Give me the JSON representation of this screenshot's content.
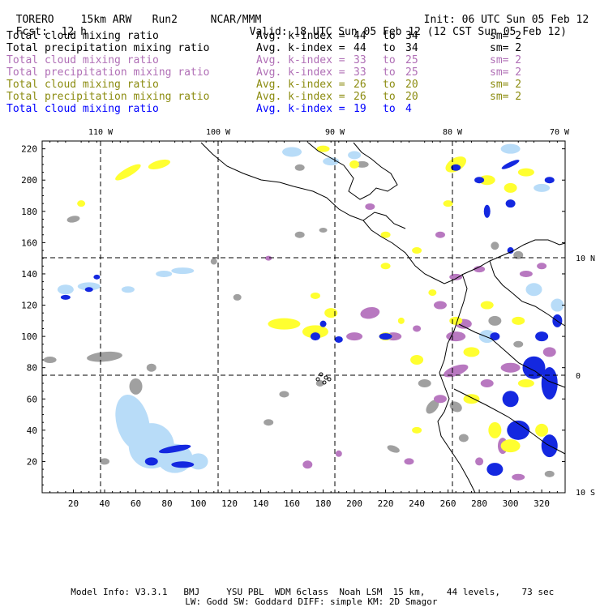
{
  "header": {
    "model": "TORERO",
    "resolution": "15km ARW",
    "run": "Run2",
    "org": "NCAR/MMM",
    "init": "Init: 06 UTC Sun 05 Feb 12",
    "fcst_label": "Fcst:",
    "fcst_value": "12 h",
    "valid": "Valid: 18 UTC Sun 05 Feb 12 (12 CST Sun 05 Feb 12)"
  },
  "colors": {
    "black": "#000000",
    "purple": "#b06fb6",
    "olive": "#8c8c10",
    "blue": "#0000ff",
    "gray_fill": "#a0a0a0",
    "lightblue_fill": "#b8dcf8",
    "purple_fill": "#b878c0",
    "yellow_fill": "#ffff30",
    "blue_fill": "#1428e0"
  },
  "legend": [
    {
      "field": "Total cloud mixing ratio",
      "avg_label": "Avg. k-index =",
      "k_from": "44",
      "to": "to",
      "k_to": "34",
      "sm": "sm= 2",
      "color": "#000000"
    },
    {
      "field": "Total precipitation mixing ratio",
      "avg_label": "Avg. k-index =",
      "k_from": "44",
      "to": "to",
      "k_to": "34",
      "sm": "sm= 2",
      "color": "#000000"
    },
    {
      "field": "Total cloud mixing ratio",
      "avg_label": "Avg. k-index =",
      "k_from": "33",
      "to": "to",
      "k_to": "25",
      "sm": "sm= 2",
      "color": "#b06fb6"
    },
    {
      "field": "Total precipitation mixing ratio",
      "avg_label": "Avg. k-index =",
      "k_from": "33",
      "to": "to",
      "k_to": "25",
      "sm": "sm= 2",
      "color": "#b06fb6"
    },
    {
      "field": "Total cloud mixing ratio",
      "avg_label": "Avg. k-index =",
      "k_from": "26",
      "to": "to",
      "k_to": "20",
      "sm": "sm= 2",
      "color": "#8c8c10"
    },
    {
      "field": "Total precipitation mixing ratio",
      "avg_label": "Avg. k-index =",
      "k_from": "26",
      "to": "to",
      "k_to": "20",
      "sm": "sm= 2",
      "color": "#8c8c10"
    },
    {
      "field": "Total cloud mixing ratio",
      "avg_label": "Avg. k-index =",
      "k_from": "19",
      "to": "to",
      "k_to": "4",
      "sm": "",
      "color": "#0000ff"
    }
  ],
  "map": {
    "lon_labels": [
      "110 W",
      "100 W",
      "90 W",
      "80 W",
      "70 W"
    ],
    "lat_labels": [
      "10 N",
      "0",
      "10 S"
    ],
    "x_ticks": [
      "20",
      "40",
      "60",
      "80",
      "100",
      "120",
      "140",
      "160",
      "180",
      "200",
      "220",
      "240",
      "260",
      "280",
      "300",
      "320"
    ],
    "y_ticks": [
      "20",
      "40",
      "60",
      "80",
      "100",
      "120",
      "140",
      "160",
      "180",
      "200",
      "220"
    ],
    "grid_x_range": [
      0,
      335
    ],
    "grid_y_range": [
      0,
      225
    ]
  },
  "footer": {
    "line1": "Model Info: V3.3.1   BMJ     YSU PBL  WDM 6class  Noah LSM  15 km,    44 levels,    73 sec",
    "line2": "LW: Godd SW: Goddard DIFF: simple KM: 2D Smagor"
  }
}
